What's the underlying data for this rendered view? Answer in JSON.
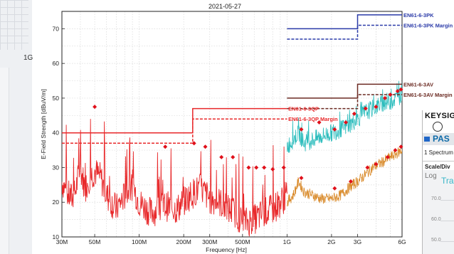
{
  "chart_data": {
    "type": "line",
    "title": "2021-05-27",
    "xlabel": "Frequency [Hz]",
    "ylabel": "E-Field Strength [dBuV/m]",
    "x_scale": "log",
    "xlim": [
      30000000,
      6000000000
    ],
    "ylim": [
      10,
      75
    ],
    "grid": true,
    "x_ticks": [
      {
        "value": 30000000,
        "label": "30M"
      },
      {
        "value": 50000000,
        "label": "50M"
      },
      {
        "value": 100000000,
        "label": "100M"
      },
      {
        "value": 200000000,
        "label": "200M"
      },
      {
        "value": 300000000,
        "label": "300M"
      },
      {
        "value": 500000000,
        "label": "500M"
      },
      {
        "value": 1000000000,
        "label": "1G"
      },
      {
        "value": 2000000000,
        "label": "2G"
      },
      {
        "value": 3000000000,
        "label": "3G"
      },
      {
        "value": 6000000000,
        "label": "6G"
      }
    ],
    "y_ticks": [
      10,
      20,
      30,
      40,
      50,
      60,
      70
    ],
    "limit_lines": [
      {
        "name": "EN61-6-3QP",
        "color": "#e8282a",
        "dashed": false,
        "points": [
          [
            30000000,
            40
          ],
          [
            230000000,
            40
          ],
          [
            230000000,
            47
          ],
          [
            1000000000,
            47
          ]
        ]
      },
      {
        "name": "EN61-6-3QP Margin",
        "color": "#e8282a",
        "dashed": true,
        "points": [
          [
            30000000,
            37
          ],
          [
            230000000,
            37
          ],
          [
            230000000,
            44
          ],
          [
            1000000000,
            44
          ]
        ]
      },
      {
        "name": "EN61-6-3PK",
        "color": "#2a3aa8",
        "dashed": false,
        "points": [
          [
            1000000000,
            70
          ],
          [
            3000000000,
            70
          ],
          [
            3000000000,
            74
          ],
          [
            6000000000,
            74
          ]
        ]
      },
      {
        "name": "EN61-6-3PK Margin",
        "color": "#2a3aa8",
        "dashed": true,
        "points": [
          [
            1000000000,
            67
          ],
          [
            3000000000,
            67
          ],
          [
            3000000000,
            71
          ],
          [
            6000000000,
            71
          ]
        ]
      },
      {
        "name": "EN61-6-3AV",
        "color": "#6b2a22",
        "dashed": false,
        "points": [
          [
            1000000000,
            50
          ],
          [
            3000000000,
            50
          ],
          [
            3000000000,
            54
          ],
          [
            6000000000,
            54
          ]
        ]
      },
      {
        "name": "EN61-6-3AV Margin",
        "color": "#6b2a22",
        "dashed": true,
        "points": [
          [
            1000000000,
            47
          ],
          [
            3000000000,
            47
          ],
          [
            3000000000,
            51
          ],
          [
            6000000000,
            51
          ]
        ]
      }
    ],
    "series": [
      {
        "color": "#e8282a",
        "x": [
          30000000,
          33000000,
          36000000,
          40000000,
          43000000,
          46000000,
          50000000,
          55000000,
          60000000,
          70000000,
          80000000,
          90000000,
          100000000,
          120000000,
          150000000,
          180000000,
          220000000,
          260000000,
          300000000,
          350000000,
          400000000,
          450000000,
          500000000,
          600000000,
          700000000,
          800000000,
          900000000,
          1000000000
        ],
        "y": [
          26,
          22,
          21,
          30,
          24,
          27,
          29,
          27,
          22,
          18,
          22,
          25,
          20,
          17,
          19,
          18,
          22,
          24,
          21,
          20,
          18,
          17,
          14,
          15,
          17,
          18,
          20,
          22
        ]
      },
      {
        "color": "#2dbdbd",
        "x": [
          1000000000,
          1100000000,
          1200000000,
          1300000000,
          1500000000,
          1700000000,
          2000000000,
          2300000000,
          2600000000,
          3000000000,
          3400000000,
          3800000000,
          4200000000,
          4600000000,
          5000000000,
          5500000000,
          6000000000
        ],
        "y": [
          36,
          38,
          40,
          37,
          38,
          39,
          40,
          41,
          42,
          44,
          46,
          47,
          48,
          49,
          49,
          50,
          51
        ]
      },
      {
        "color": "#d98a2a",
        "x": [
          1000000000,
          1100000000,
          1200000000,
          1300000000,
          1500000000,
          1700000000,
          2000000000,
          2300000000,
          2600000000,
          3000000000,
          3400000000,
          3800000000,
          4200000000,
          4600000000,
          5000000000,
          5500000000,
          6000000000
        ],
        "y": [
          20,
          22,
          26,
          23,
          22,
          21,
          21,
          22,
          24,
          26,
          28,
          30,
          31,
          32,
          33,
          34,
          35
        ]
      }
    ],
    "markers": {
      "color": "#e0101a",
      "points": [
        [
          50000000,
          47.5
        ],
        [
          150000000,
          36
        ],
        [
          235000000,
          37
        ],
        [
          280000000,
          36
        ],
        [
          360000000,
          33
        ],
        [
          430000000,
          33
        ],
        [
          550000000,
          30
        ],
        [
          620000000,
          30
        ],
        [
          700000000,
          30
        ],
        [
          800000000,
          29.5
        ],
        [
          950000000,
          30
        ],
        [
          1250000000,
          41
        ],
        [
          1650000000,
          43
        ],
        [
          2100000000,
          41
        ],
        [
          2500000000,
          43
        ],
        [
          2850000000,
          45.5
        ],
        [
          3400000000,
          47
        ],
        [
          4000000000,
          47.5
        ],
        [
          4600000000,
          50
        ],
        [
          5000000000,
          51
        ],
        [
          5600000000,
          52
        ],
        [
          5900000000,
          52.5
        ],
        [
          1250000000,
          27
        ],
        [
          2100000000,
          24
        ],
        [
          2700000000,
          26
        ],
        [
          3500000000,
          30
        ],
        [
          4000000000,
          31
        ],
        [
          4800000000,
          33
        ],
        [
          5400000000,
          35
        ],
        [
          5900000000,
          36
        ]
      ]
    }
  },
  "left_strip": {
    "tick_label": "1G"
  },
  "inset": {
    "brand": "KEYSIG",
    "verdict": "PAS",
    "spectrum_label": "1 Spectrum",
    "scale_label": "Scale/Div",
    "log_label": "Log",
    "trace_label": "Tra",
    "y_ticks": [
      "70.0",
      "60.0",
      "50.0"
    ]
  }
}
